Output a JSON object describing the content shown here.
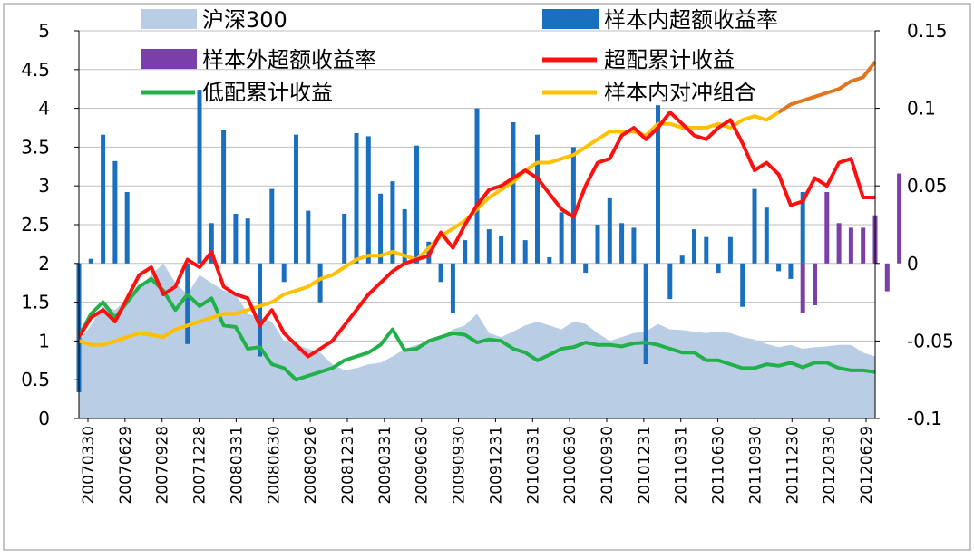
{
  "chart_data": {
    "type": "combo",
    "title": "",
    "x_labels_shown": [
      "20070330",
      "20070629",
      "20070928",
      "20071228",
      "20080331",
      "20080630",
      "20080926",
      "20081231",
      "20090331",
      "20090630",
      "20090930",
      "20091231",
      "20100331",
      "20100630",
      "20100930",
      "20101231",
      "20110331",
      "20110630",
      "20110930",
      "20111230",
      "20120330",
      "20120629"
    ],
    "left_axis": {
      "ylim": [
        0,
        5
      ],
      "ticks": [
        "0",
        "0.5",
        "1",
        "1.5",
        "2",
        "2.5",
        "3",
        "3.5",
        "4",
        "4.5",
        "5"
      ]
    },
    "right_axis": {
      "ylim": [
        -0.1,
        0.15
      ],
      "ticks": [
        "-0.1",
        "-0.05",
        "0",
        "0.05",
        "0.1",
        "0.15"
      ]
    },
    "legend": {
      "placement": "top",
      "items": [
        {
          "key": "hs300",
          "label": "沪深300",
          "kind": "area",
          "color": "#b9cde5"
        },
        {
          "key": "in_excess",
          "label": "样本内超额收益率",
          "kind": "bar",
          "color": "#1a6fbf"
        },
        {
          "key": "out_excess",
          "label": "样本外超额收益率",
          "kind": "bar",
          "color": "#7a3fa8"
        },
        {
          "key": "over_cum",
          "label": "超配累计收益",
          "kind": "line",
          "color": "#ff1010"
        },
        {
          "key": "under_cum",
          "label": "低配累计收益",
          "kind": "line",
          "color": "#22b04a"
        },
        {
          "key": "hedge",
          "label": "样本内对冲组合",
          "kind": "line",
          "color": "#ffc000"
        }
      ]
    },
    "colors": {
      "hs300": "#b9cde5",
      "in_excess": "#1a6fbf",
      "out_excess": "#7a3fa8",
      "over_cum": "#ff1010",
      "under_cum": "#22b04a",
      "hedge": "#ffc000",
      "hedge_out": "#e2761f",
      "grid": "#bfbfbf"
    },
    "n_points": 67,
    "series": {
      "hs300": [
        1.0,
        1.2,
        1.45,
        1.4,
        1.55,
        1.7,
        1.85,
        2.0,
        1.75,
        1.6,
        1.85,
        1.75,
        1.65,
        1.6,
        1.35,
        1.3,
        1.25,
        1.0,
        0.95,
        0.9,
        0.85,
        0.7,
        0.62,
        0.65,
        0.7,
        0.72,
        0.8,
        0.9,
        0.95,
        1.0,
        1.05,
        1.15,
        1.2,
        1.35,
        1.1,
        1.05,
        1.12,
        1.2,
        1.25,
        1.2,
        1.15,
        1.25,
        1.22,
        1.1,
        1.0,
        1.05,
        1.1,
        1.12,
        1.22,
        1.15,
        1.14,
        1.12,
        1.1,
        1.12,
        1.1,
        1.05,
        1.02,
        0.96,
        0.92,
        0.95,
        0.9,
        0.92,
        0.93,
        0.95,
        0.95,
        0.85,
        0.8
      ],
      "under_cum": [
        1.05,
        1.35,
        1.5,
        1.3,
        1.5,
        1.7,
        1.8,
        1.65,
        1.4,
        1.6,
        1.45,
        1.55,
        1.2,
        1.18,
        0.9,
        0.92,
        0.7,
        0.65,
        0.5,
        0.55,
        0.6,
        0.65,
        0.75,
        0.8,
        0.85,
        0.95,
        1.15,
        0.88,
        0.9,
        1.0,
        1.05,
        1.1,
        1.08,
        0.98,
        1.02,
        1.0,
        0.9,
        0.85,
        0.75,
        0.82,
        0.9,
        0.92,
        0.98,
        0.95,
        0.95,
        0.93,
        0.97,
        0.98,
        0.95,
        0.9,
        0.85,
        0.85,
        0.75,
        0.75,
        0.7,
        0.65,
        0.65,
        0.7,
        0.68,
        0.72,
        0.66,
        0.72,
        0.72,
        0.65,
        0.62,
        0.62,
        0.6
      ],
      "over_cum": [
        1.05,
        1.3,
        1.4,
        1.25,
        1.55,
        1.85,
        1.95,
        1.6,
        1.7,
        2.05,
        1.95,
        2.15,
        1.7,
        1.6,
        1.55,
        1.2,
        1.4,
        1.1,
        0.95,
        0.8,
        0.9,
        1.0,
        1.2,
        1.4,
        1.6,
        1.75,
        1.9,
        2.0,
        2.05,
        2.1,
        2.4,
        2.2,
        2.5,
        2.75,
        2.95,
        3.0,
        3.1,
        3.2,
        3.1,
        2.9,
        2.7,
        2.6,
        3.0,
        3.3,
        3.35,
        3.65,
        3.75,
        3.6,
        3.75,
        3.95,
        3.8,
        3.65,
        3.6,
        3.75,
        3.85,
        3.55,
        3.2,
        3.3,
        3.15,
        2.75,
        2.8,
        3.1,
        3.0,
        3.3,
        3.35,
        2.85,
        2.85
      ],
      "hedge": [
        1.0,
        0.95,
        0.95,
        1.0,
        1.05,
        1.1,
        1.08,
        1.05,
        1.15,
        1.2,
        1.25,
        1.3,
        1.35,
        1.35,
        1.4,
        1.45,
        1.5,
        1.6,
        1.65,
        1.7,
        1.8,
        1.85,
        1.95,
        2.05,
        2.1,
        2.1,
        2.15,
        2.1,
        2.05,
        2.2,
        2.35,
        2.45,
        2.55,
        2.7,
        2.85,
        2.95,
        3.05,
        3.2,
        3.3,
        3.3,
        3.35,
        3.4,
        3.5,
        3.6,
        3.7,
        3.7,
        3.7,
        3.65,
        3.8,
        3.8,
        3.75,
        3.75,
        3.75,
        3.8,
        3.75,
        3.85,
        3.9,
        3.85,
        3.95,
        4.05,
        4.1,
        4.15,
        4.2,
        4.25,
        4.35,
        4.4,
        4.6
      ],
      "hedge_out_start": 58,
      "in_excess": [
        -0.083,
        0.003,
        0.083,
        0.066,
        0.046,
        0,
        0,
        0,
        0,
        -0.052,
        0.112,
        0.026,
        0.086,
        0.032,
        0.029,
        -0.06,
        0.048,
        -0.012,
        0.083,
        0.034,
        -0.025,
        0,
        0.032,
        0.084,
        0.082,
        0.045,
        0.053,
        0.035,
        0.076,
        0.014,
        -0.012,
        -0.032,
        0.015,
        0.1,
        0.022,
        0.018,
        0.091,
        0.015,
        0.083,
        0.004,
        0.033,
        0.075,
        -0.006,
        0.025,
        0.042,
        0.026,
        0.023,
        -0.065,
        0.102,
        -0.023,
        0.005,
        0.022,
        0.017,
        -0.006,
        0.017,
        -0.028,
        0.048,
        0.036,
        -0.005,
        -0.01,
        0.046,
        0,
        0,
        0,
        0,
        0,
        0
      ],
      "out_excess": [
        0,
        0,
        0,
        0,
        0,
        0,
        0,
        0,
        0,
        0,
        0,
        0,
        0,
        0,
        0,
        0,
        0,
        0,
        0,
        0,
        0,
        0,
        0,
        0,
        0,
        0,
        0,
        0,
        0,
        0,
        0,
        0,
        0,
        0,
        0,
        0,
        0,
        0,
        0,
        0,
        0,
        0,
        0,
        0,
        0,
        0,
        0,
        0,
        0,
        0,
        0,
        0,
        0,
        0,
        0,
        0,
        0,
        0,
        0,
        0,
        -0.032,
        -0.027,
        0.046,
        0.026,
        0.023,
        0.023,
        0.031,
        -0.018,
        0.058
      ]
    }
  }
}
